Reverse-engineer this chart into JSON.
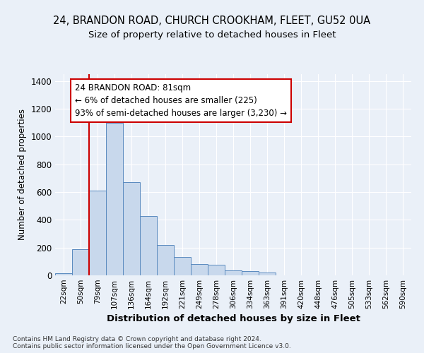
{
  "title1": "24, BRANDON ROAD, CHURCH CROOKHAM, FLEET, GU52 0UA",
  "title2": "Size of property relative to detached houses in Fleet",
  "xlabel": "Distribution of detached houses by size in Fleet",
  "ylabel": "Number of detached properties",
  "bar_labels": [
    "22sqm",
    "50sqm",
    "79sqm",
    "107sqm",
    "136sqm",
    "164sqm",
    "192sqm",
    "221sqm",
    "249sqm",
    "278sqm",
    "306sqm",
    "334sqm",
    "363sqm",
    "391sqm",
    "420sqm",
    "448sqm",
    "476sqm",
    "505sqm",
    "533sqm",
    "562sqm",
    "590sqm"
  ],
  "bar_values": [
    15,
    190,
    610,
    1100,
    670,
    425,
    220,
    130,
    80,
    75,
    35,
    28,
    22,
    0,
    0,
    0,
    0,
    0,
    0,
    0,
    0
  ],
  "bar_color": "#c8d8ec",
  "bar_edge_color": "#5a8abf",
  "vline_color": "#cc0000",
  "annotation_text": "24 BRANDON ROAD: 81sqm\n← 6% of detached houses are smaller (225)\n93% of semi-detached houses are larger (3,230) →",
  "annotation_box_color": "#ffffff",
  "annotation_box_edge": "#cc0000",
  "ylim": [
    0,
    1450
  ],
  "yticks": [
    0,
    200,
    400,
    600,
    800,
    1000,
    1200,
    1400
  ],
  "footer_text": "Contains HM Land Registry data © Crown copyright and database right 2024.\nContains public sector information licensed under the Open Government Licence v3.0.",
  "background_color": "#eaf0f8",
  "plot_bg_color": "#eaf0f8",
  "grid_color": "#ffffff",
  "title1_fontsize": 10.5,
  "title2_fontsize": 9.5
}
